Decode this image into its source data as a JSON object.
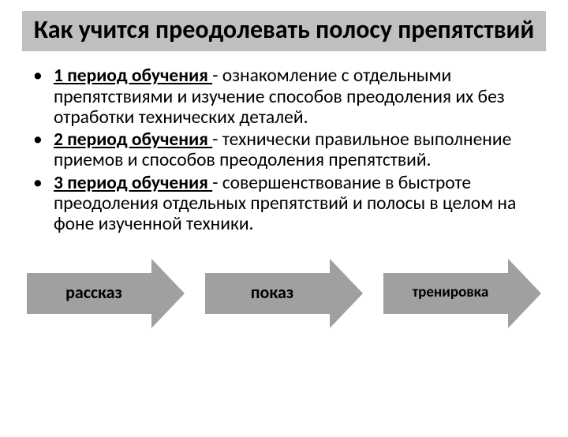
{
  "title": "Как учится преодолевать полосу препятствий",
  "bullets": [
    {
      "bold": "1 период обучения ",
      "rest": "- ознакомление с отдельными препятствиями и изучение способов преодоления их без отработки технических деталей."
    },
    {
      "bold": "2 период обучения ",
      "rest": "- технически правильное выполнение приемов и способов преодоления препятствий."
    },
    {
      "bold": "3 период обучения ",
      "rest": "- совершенствование в быстроте преодоления отдельных препятствий и полосы в целом на фоне изученной техники."
    }
  ],
  "arrows": [
    {
      "label": "рассказ",
      "fontsize": 22
    },
    {
      "label": "показ",
      "fontsize": 22
    },
    {
      "label": "тренировка",
      "fontsize": 19
    }
  ],
  "colors": {
    "title_bg": "#bfbfbf",
    "arrow_fill": "#a0a0a0",
    "text": "#000000",
    "page_bg": "#ffffff"
  },
  "typography": {
    "title_fontsize": 32,
    "body_fontsize": 23.5,
    "font_family": "Calibri"
  }
}
